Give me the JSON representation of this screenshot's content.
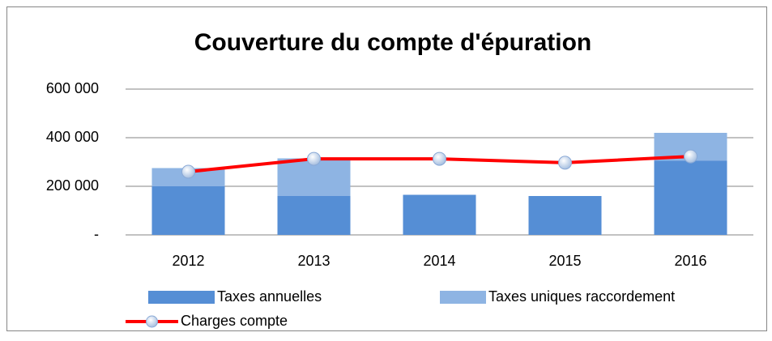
{
  "chart_data": {
    "type": "bar",
    "title": "Couverture du compte d'épuration",
    "categories": [
      "2012",
      "2013",
      "2014",
      "2015",
      "2016"
    ],
    "series": [
      {
        "name": "Taxes annuelles",
        "type": "bar",
        "stack": true,
        "color": "#558ed5",
        "values": [
          200000,
          160000,
          165000,
          160000,
          305000
        ]
      },
      {
        "name": "Taxes uniques raccordement",
        "type": "bar",
        "stack": true,
        "color": "#8eb4e3",
        "values": [
          75000,
          155000,
          0,
          0,
          115000
        ]
      },
      {
        "name": "Charges compte",
        "type": "line",
        "color": "#ff0000",
        "values": [
          260000,
          313000,
          313000,
          297000,
          323000
        ]
      }
    ],
    "ylim": [
      0,
      600000
    ],
    "yticks": [
      {
        "value": 0,
        "label": "-"
      },
      {
        "value": 200000,
        "label": "200 000"
      },
      {
        "value": 400000,
        "label": "400 000"
      },
      {
        "value": 600000,
        "label": "600 000"
      }
    ],
    "grid": true,
    "legend": "bottom"
  }
}
